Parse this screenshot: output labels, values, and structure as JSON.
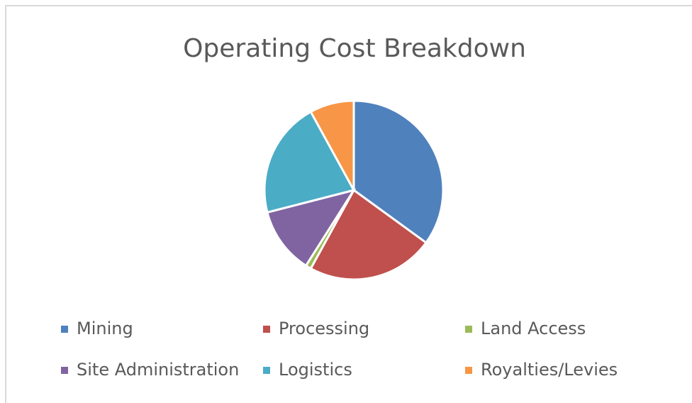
{
  "chart_data": {
    "type": "pie",
    "title": "Operating Cost Breakdown",
    "categories": [
      "Mining",
      "Processing",
      "Land Access",
      "Site Administration",
      "Logistics",
      "Royalties/Levies"
    ],
    "values": [
      35,
      23,
      1,
      12,
      21,
      8
    ],
    "colors": [
      "#4f81bd",
      "#c0504d",
      "#9bbb59",
      "#8064a2",
      "#4bacc6",
      "#f79646"
    ],
    "legend": "bottom"
  }
}
